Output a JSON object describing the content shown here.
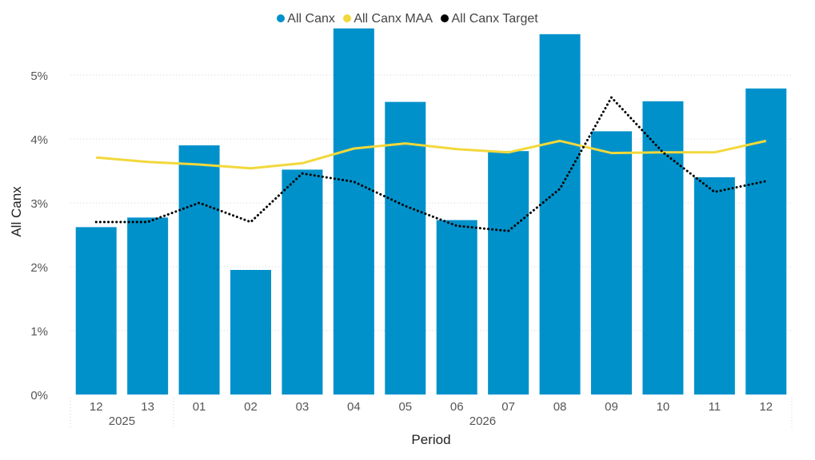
{
  "chart_data": {
    "type": "bar",
    "xlabel": "Period",
    "ylabel": "All Canx",
    "ylim": [
      0,
      5.8
    ],
    "y_ticks": [
      "0%",
      "1%",
      "2%",
      "3%",
      "4%",
      "5%"
    ],
    "y_tick_values": [
      0,
      1,
      2,
      3,
      4,
      5
    ],
    "grid": "horizontal dotted",
    "legend_position": "top-center",
    "categories": [
      "12",
      "13",
      "01",
      "02",
      "03",
      "04",
      "05",
      "06",
      "07",
      "08",
      "09",
      "10",
      "11",
      "12"
    ],
    "year_groups": [
      {
        "label": "2025",
        "span": 2
      },
      {
        "label": "2026",
        "span": 12
      }
    ],
    "series": [
      {
        "name": "All Canx",
        "kind": "bar",
        "color": "#0091CA",
        "values": [
          2.62,
          2.77,
          3.9,
          1.95,
          3.52,
          5.73,
          4.58,
          2.73,
          3.81,
          5.64,
          4.12,
          4.59,
          3.4,
          4.79
        ]
      },
      {
        "name": "All Canx MAA",
        "kind": "line",
        "color": "#F2D83B",
        "values": [
          3.71,
          3.64,
          3.6,
          3.54,
          3.62,
          3.85,
          3.93,
          3.84,
          3.79,
          3.97,
          3.78,
          3.79,
          3.79,
          3.97
        ]
      },
      {
        "name": "All Canx Target",
        "kind": "dotted-line",
        "color": "#000000",
        "values": [
          2.7,
          2.7,
          3.0,
          2.7,
          3.46,
          3.33,
          2.95,
          2.64,
          2.56,
          3.22,
          4.65,
          3.79,
          3.17,
          3.34
        ]
      }
    ]
  }
}
